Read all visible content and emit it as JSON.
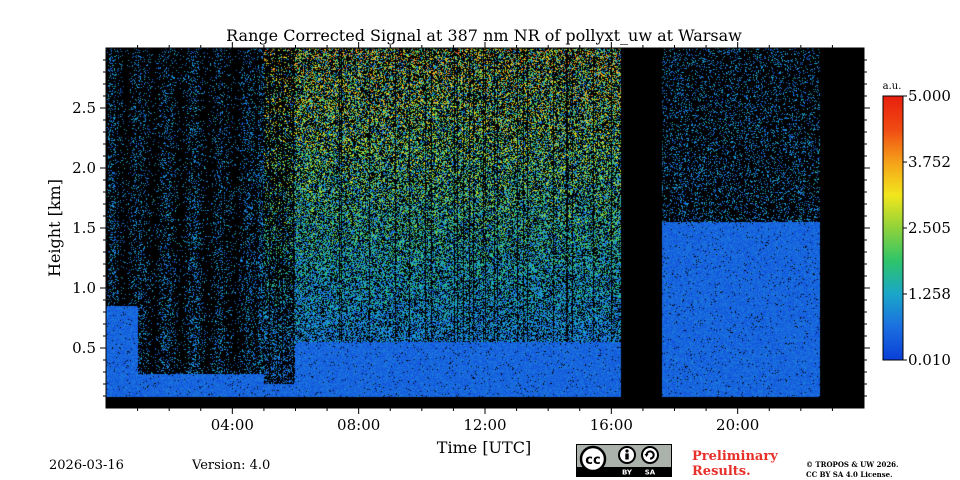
{
  "chart_data": {
    "type": "heatmap",
    "title": "Range Corrected Signal at 387 nm NR of pollyxt_uw at Warsaw",
    "xlabel": "Time [UTC]",
    "ylabel": "Height [km]",
    "xlim": [
      0,
      24
    ],
    "ylim": [
      0,
      3.0
    ],
    "x_ticks": [
      {
        "value": 4,
        "label": "04:00"
      },
      {
        "value": 8,
        "label": "08:00"
      },
      {
        "value": 12,
        "label": "12:00"
      },
      {
        "value": 16,
        "label": "16:00"
      },
      {
        "value": 20,
        "label": "20:00"
      }
    ],
    "y_ticks": [
      {
        "value": 0.5,
        "label": "0.5"
      },
      {
        "value": 1.0,
        "label": "1.0"
      },
      {
        "value": 1.5,
        "label": "1.5"
      },
      {
        "value": 2.0,
        "label": "2.0"
      },
      {
        "value": 2.5,
        "label": "2.5"
      }
    ],
    "colorbar": {
      "unit": "a.u.",
      "min": 0.01,
      "max": 5.0,
      "ticks": [
        {
          "value": 5.0,
          "label": "5.000"
        },
        {
          "value": 3.752,
          "label": "3.752"
        },
        {
          "value": 2.505,
          "label": "2.505"
        },
        {
          "value": 1.258,
          "label": "1.258"
        },
        {
          "value": 0.01,
          "label": "0.010"
        }
      ],
      "colors": [
        "#0a3fd8",
        "#1b6fe0",
        "#1aa6c9",
        "#2ec46a",
        "#8fd23a",
        "#f2e61c",
        "#f5a11a",
        "#f04a12",
        "#e81e0e"
      ]
    },
    "no_data_periods": [
      {
        "start": 16.3,
        "end": 17.6
      },
      {
        "start": 22.6,
        "end": 24.0
      }
    ],
    "grid": false
  },
  "footer": {
    "date": "2026-03-16",
    "version": "Version: 4.0",
    "preliminary_line1": "Preliminary",
    "preliminary_line2": "Results.",
    "copyright_line1": "© TROPOS & UW 2026.",
    "copyright_line2": "CC BY SA 4.0 License.",
    "license_badge": {
      "cc": "cc",
      "by": "BY",
      "sa": "SA"
    }
  }
}
